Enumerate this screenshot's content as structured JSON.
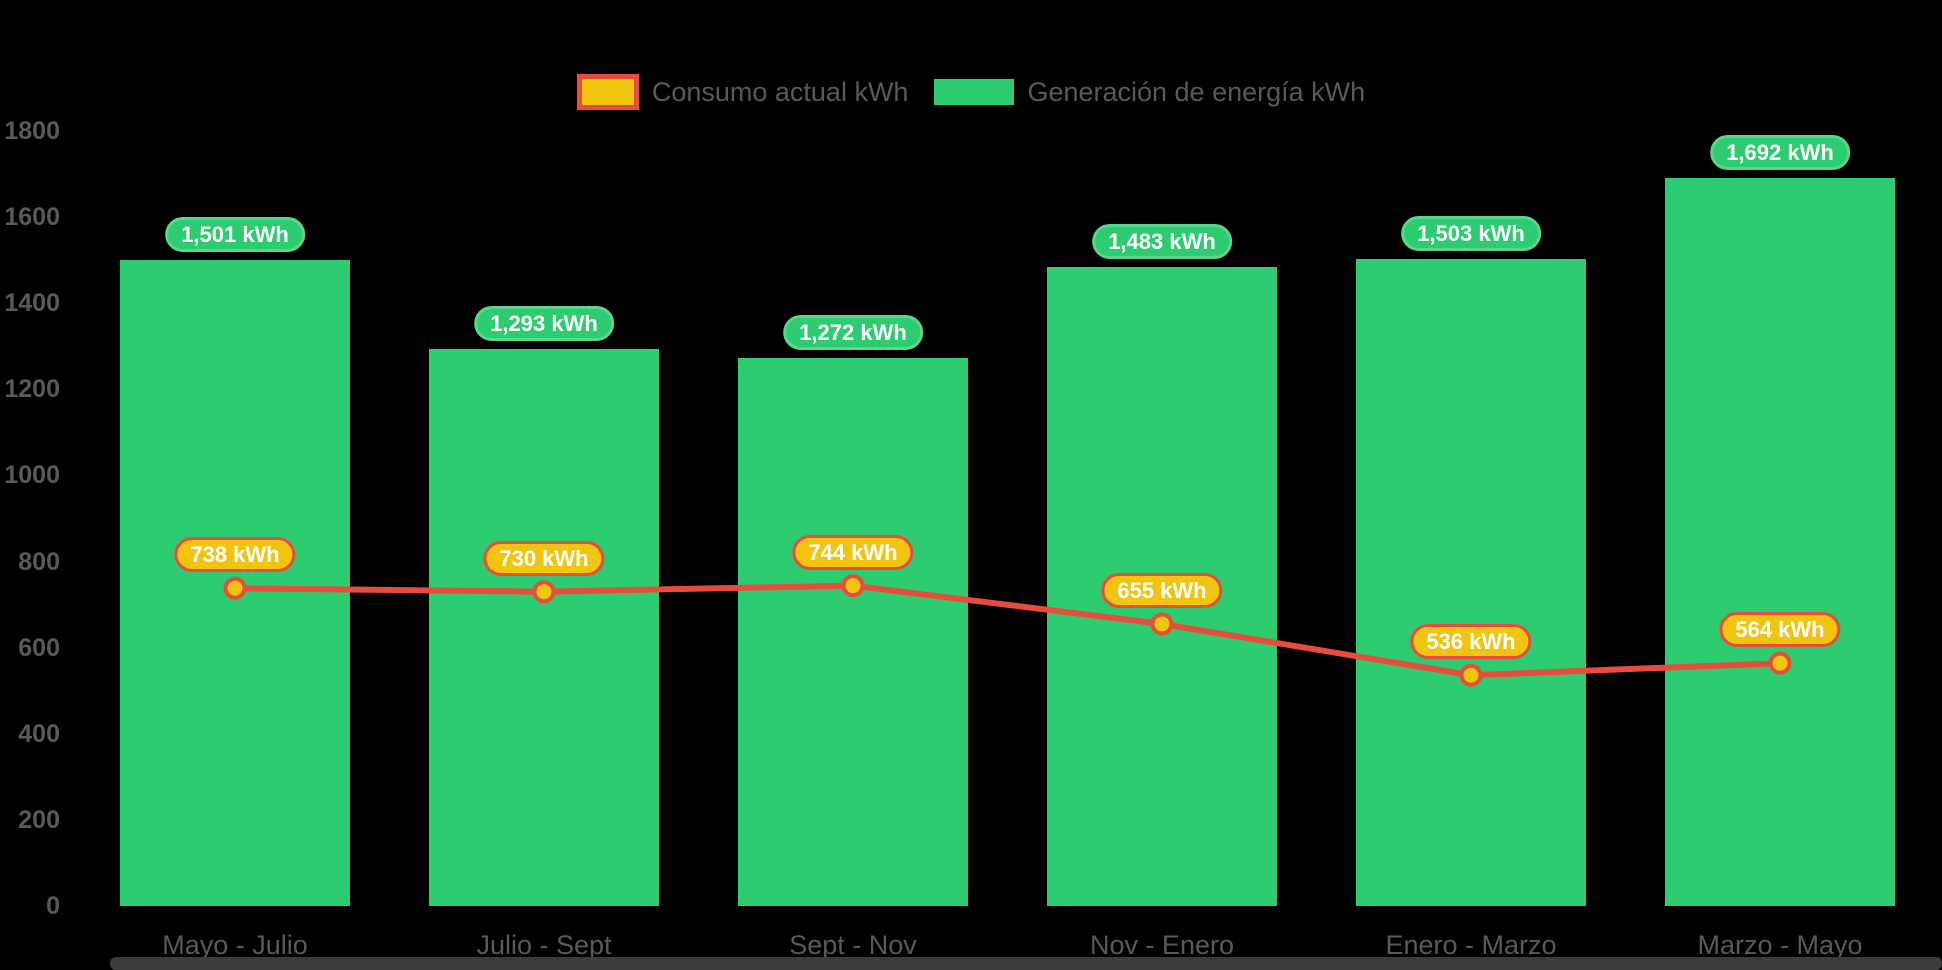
{
  "legend": {
    "items": [
      {
        "label": "Consumo actual kWh",
        "fill": "#f1c40f",
        "border": "#e74c3c"
      },
      {
        "label": "Generación de energía kWh",
        "fill": "#2ecc71",
        "border": "#2ecc71"
      }
    ]
  },
  "chart_data": {
    "type": "bar",
    "title": "",
    "xlabel": "",
    "ylabel": "",
    "categories": [
      "Mayo - Julio",
      "Julio - Sept",
      "Sept - Nov",
      "Nov - Enero",
      "Enero - Marzo",
      "Marzo - Mayo"
    ],
    "series": [
      {
        "name": "Generación de energía kWh",
        "type": "bar",
        "color": "#2ecc71",
        "label_border": "#58d68d",
        "values": [
          1501,
          1293,
          1272,
          1483,
          1503,
          1692
        ],
        "labels": [
          "1,501 kWh",
          "1,293 kWh",
          "1,272 kWh",
          "1,483 kWh",
          "1,503 kWh",
          "1,692 kWh"
        ]
      },
      {
        "name": "Consumo actual kWh",
        "type": "line",
        "color": "#e74c3c",
        "marker_color": "#f1c40f",
        "values": [
          738,
          730,
          744,
          655,
          536,
          564
        ],
        "labels": [
          "738 kWh",
          "730 kWh",
          "744 kWh",
          "655 kWh",
          "536 kWh",
          "564 kWh"
        ]
      }
    ],
    "ylim": [
      0,
      1800
    ],
    "ytick_step": 200,
    "yticks": [
      "0",
      "200",
      "400",
      "600",
      "800",
      "1000",
      "1200",
      "1400",
      "1600",
      "1800"
    ],
    "grid": false,
    "legend_position": "top"
  },
  "colors": {
    "background": "#000000",
    "bar_green": "#2ecc71",
    "bar_label_border": "#58d68d",
    "line_red": "#e74c3c",
    "marker_yellow": "#f1c40f",
    "axis_text": "#595959",
    "legend_text": "#595959",
    "scrollbar": "#3c3c3c"
  }
}
